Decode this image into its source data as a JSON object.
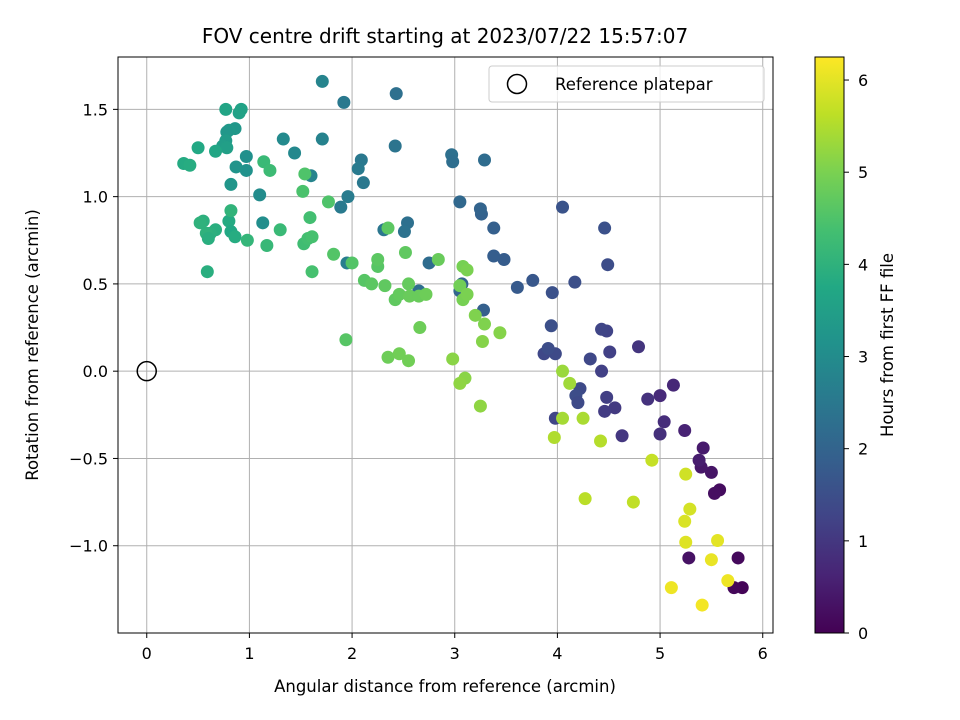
{
  "chart_data": {
    "type": "scatter",
    "title": "FOV centre drift starting at 2023/07/22 15:57:07",
    "xlabel": "Angular distance from reference (arcmin)",
    "ylabel": "Rotation from reference (arcmin)",
    "xlim": [
      -0.28,
      6.1
    ],
    "ylim": [
      -1.5,
      1.8
    ],
    "xticks": [
      0,
      1,
      2,
      3,
      4,
      5,
      6
    ],
    "xtick_labels": [
      "0",
      "1",
      "2",
      "3",
      "4",
      "5",
      "6"
    ],
    "yticks": [
      -1.0,
      -0.5,
      0.0,
      0.5,
      1.0,
      1.5
    ],
    "ytick_labels": [
      "−1.0",
      "−0.5",
      "0.0",
      "0.5",
      "1.0",
      "1.5"
    ],
    "grid": true,
    "legend": {
      "position": "top-right",
      "entries": [
        "Reference platepar"
      ]
    },
    "reference_point": {
      "x": 0,
      "y": 0,
      "label": "Reference platepar"
    },
    "colorbar": {
      "label": "Hours from first FF file",
      "min": 0,
      "max": 6.25,
      "colormap": "viridis",
      "ticks": [
        0,
        1,
        2,
        3,
        4,
        5,
        6
      ],
      "tick_labels": [
        "0",
        "1",
        "2",
        "3",
        "4",
        "5",
        "6"
      ]
    },
    "points": [
      {
        "x": 5.8,
        "y": -1.24,
        "h": 0.05
      },
      {
        "x": 5.72,
        "y": -1.24,
        "h": 0.12
      },
      {
        "x": 5.76,
        "y": -1.07,
        "h": 0.15
      },
      {
        "x": 5.28,
        "y": -1.07,
        "h": 0.3
      },
      {
        "x": 5.58,
        "y": -0.68,
        "h": 0.2
      },
      {
        "x": 5.53,
        "y": -0.7,
        "h": 0.25
      },
      {
        "x": 5.5,
        "y": -0.58,
        "h": 0.35
      },
      {
        "x": 5.4,
        "y": -0.55,
        "h": 0.4
      },
      {
        "x": 5.38,
        "y": -0.51,
        "h": 0.5
      },
      {
        "x": 5.42,
        "y": -0.44,
        "h": 0.45
      },
      {
        "x": 5.24,
        "y": -0.34,
        "h": 0.6
      },
      {
        "x": 5.13,
        "y": -0.08,
        "h": 0.7
      },
      {
        "x": 5.04,
        "y": -0.29,
        "h": 0.8
      },
      {
        "x": 5.0,
        "y": -0.14,
        "h": 0.75
      },
      {
        "x": 5.0,
        "y": -0.36,
        "h": 0.85
      },
      {
        "x": 4.88,
        "y": -0.16,
        "h": 0.9
      },
      {
        "x": 4.79,
        "y": 0.14,
        "h": 0.95
      },
      {
        "x": 4.63,
        "y": -0.37,
        "h": 1.0
      },
      {
        "x": 4.56,
        "y": -0.21,
        "h": 1.05
      },
      {
        "x": 4.46,
        "y": -0.23,
        "h": 1.1
      },
      {
        "x": 4.48,
        "y": -0.15,
        "h": 1.15
      },
      {
        "x": 4.43,
        "y": 0.0,
        "h": 1.2
      },
      {
        "x": 4.48,
        "y": 0.23,
        "h": 1.25
      },
      {
        "x": 4.43,
        "y": 0.24,
        "h": 1.3
      },
      {
        "x": 4.51,
        "y": 0.11,
        "h": 1.2
      },
      {
        "x": 4.32,
        "y": 0.07,
        "h": 1.35
      },
      {
        "x": 4.22,
        "y": -0.1,
        "h": 1.4
      },
      {
        "x": 4.18,
        "y": -0.14,
        "h": 1.45
      },
      {
        "x": 4.2,
        "y": -0.18,
        "h": 1.4
      },
      {
        "x": 4.17,
        "y": 0.51,
        "h": 1.5
      },
      {
        "x": 4.49,
        "y": 0.61,
        "h": 1.45
      },
      {
        "x": 4.46,
        "y": 0.82,
        "h": 1.55
      },
      {
        "x": 4.05,
        "y": 0.94,
        "h": 1.6
      },
      {
        "x": 3.95,
        "y": 0.45,
        "h": 1.55
      },
      {
        "x": 3.94,
        "y": 0.26,
        "h": 1.5
      },
      {
        "x": 3.98,
        "y": 0.1,
        "h": 1.4
      },
      {
        "x": 3.87,
        "y": 0.1,
        "h": 1.35
      },
      {
        "x": 3.91,
        "y": 0.13,
        "h": 1.45
      },
      {
        "x": 3.98,
        "y": -0.27,
        "h": 1.3
      },
      {
        "x": 3.76,
        "y": 0.52,
        "h": 1.7
      },
      {
        "x": 3.61,
        "y": 0.48,
        "h": 1.75
      },
      {
        "x": 3.48,
        "y": 0.64,
        "h": 1.8
      },
      {
        "x": 3.38,
        "y": 0.66,
        "h": 1.85
      },
      {
        "x": 3.38,
        "y": 0.82,
        "h": 1.9
      },
      {
        "x": 3.26,
        "y": 0.9,
        "h": 1.95
      },
      {
        "x": 3.25,
        "y": 0.93,
        "h": 2.0
      },
      {
        "x": 3.28,
        "y": 0.35,
        "h": 1.9
      },
      {
        "x": 3.05,
        "y": 0.97,
        "h": 2.1
      },
      {
        "x": 3.07,
        "y": 0.5,
        "h": 2.0
      },
      {
        "x": 3.05,
        "y": 0.46,
        "h": 2.05
      },
      {
        "x": 2.75,
        "y": 0.62,
        "h": 2.2
      },
      {
        "x": 2.65,
        "y": 0.46,
        "h": 2.25
      },
      {
        "x": 2.97,
        "y": 1.24,
        "h": 2.3
      },
      {
        "x": 2.98,
        "y": 1.2,
        "h": 2.25
      },
      {
        "x": 3.29,
        "y": 1.21,
        "h": 2.2
      },
      {
        "x": 2.54,
        "y": 0.85,
        "h": 2.3
      },
      {
        "x": 2.51,
        "y": 0.8,
        "h": 2.35
      },
      {
        "x": 2.42,
        "y": 1.29,
        "h": 2.4
      },
      {
        "x": 2.43,
        "y": 1.59,
        "h": 2.3
      },
      {
        "x": 2.31,
        "y": 0.81,
        "h": 2.45
      },
      {
        "x": 2.09,
        "y": 1.21,
        "h": 2.5
      },
      {
        "x": 2.06,
        "y": 1.16,
        "h": 2.55
      },
      {
        "x": 2.11,
        "y": 1.08,
        "h": 2.5
      },
      {
        "x": 1.96,
        "y": 1.0,
        "h": 2.6
      },
      {
        "x": 1.89,
        "y": 0.94,
        "h": 2.55
      },
      {
        "x": 1.95,
        "y": 0.62,
        "h": 2.65
      },
      {
        "x": 1.92,
        "y": 1.54,
        "h": 2.5
      },
      {
        "x": 1.71,
        "y": 1.66,
        "h": 2.8
      },
      {
        "x": 1.71,
        "y": 1.33,
        "h": 2.75
      },
      {
        "x": 1.6,
        "y": 1.12,
        "h": 2.8
      },
      {
        "x": 1.44,
        "y": 1.25,
        "h": 2.9
      },
      {
        "x": 1.33,
        "y": 1.33,
        "h": 2.95
      },
      {
        "x": 1.1,
        "y": 1.01,
        "h": 3.0
      },
      {
        "x": 1.13,
        "y": 0.85,
        "h": 3.05
      },
      {
        "x": 0.97,
        "y": 1.23,
        "h": 3.1
      },
      {
        "x": 0.97,
        "y": 1.15,
        "h": 3.15
      },
      {
        "x": 0.87,
        "y": 1.17,
        "h": 3.2
      },
      {
        "x": 0.82,
        "y": 1.07,
        "h": 3.25
      },
      {
        "x": 0.86,
        "y": 1.39,
        "h": 3.3
      },
      {
        "x": 0.8,
        "y": 1.38,
        "h": 3.35
      },
      {
        "x": 0.78,
        "y": 1.37,
        "h": 3.3
      },
      {
        "x": 0.77,
        "y": 1.32,
        "h": 3.4
      },
      {
        "x": 0.74,
        "y": 1.29,
        "h": 3.45
      },
      {
        "x": 0.78,
        "y": 1.28,
        "h": 3.5
      },
      {
        "x": 0.9,
        "y": 1.48,
        "h": 3.55
      },
      {
        "x": 0.92,
        "y": 1.5,
        "h": 3.6
      },
      {
        "x": 0.77,
        "y": 1.5,
        "h": 3.65
      },
      {
        "x": 0.67,
        "y": 1.26,
        "h": 3.7
      },
      {
        "x": 0.5,
        "y": 1.28,
        "h": 3.75
      },
      {
        "x": 0.36,
        "y": 1.19,
        "h": 3.8
      },
      {
        "x": 0.42,
        "y": 1.18,
        "h": 3.85
      },
      {
        "x": 0.8,
        "y": 0.86,
        "h": 3.8
      },
      {
        "x": 0.82,
        "y": 0.8,
        "h": 3.75
      },
      {
        "x": 0.86,
        "y": 0.77,
        "h": 3.85
      },
      {
        "x": 0.67,
        "y": 0.81,
        "h": 3.9
      },
      {
        "x": 0.62,
        "y": 0.79,
        "h": 3.95
      },
      {
        "x": 0.58,
        "y": 0.79,
        "h": 4.0
      },
      {
        "x": 0.6,
        "y": 0.76,
        "h": 3.9
      },
      {
        "x": 0.55,
        "y": 0.86,
        "h": 3.95
      },
      {
        "x": 0.52,
        "y": 0.85,
        "h": 4.0
      },
      {
        "x": 0.59,
        "y": 0.57,
        "h": 3.9
      },
      {
        "x": 0.82,
        "y": 0.92,
        "h": 4.05
      },
      {
        "x": 0.98,
        "y": 0.75,
        "h": 4.1
      },
      {
        "x": 1.17,
        "y": 0.72,
        "h": 4.15
      },
      {
        "x": 1.14,
        "y": 1.2,
        "h": 4.2
      },
      {
        "x": 1.2,
        "y": 1.15,
        "h": 4.25
      },
      {
        "x": 1.3,
        "y": 0.81,
        "h": 4.2
      },
      {
        "x": 1.53,
        "y": 0.73,
        "h": 4.3
      },
      {
        "x": 1.57,
        "y": 0.76,
        "h": 4.35
      },
      {
        "x": 1.61,
        "y": 0.77,
        "h": 4.4
      },
      {
        "x": 1.59,
        "y": 0.88,
        "h": 4.35
      },
      {
        "x": 1.52,
        "y": 1.03,
        "h": 4.45
      },
      {
        "x": 1.54,
        "y": 1.13,
        "h": 4.5
      },
      {
        "x": 1.61,
        "y": 0.57,
        "h": 4.4
      },
      {
        "x": 1.77,
        "y": 0.97,
        "h": 4.5
      },
      {
        "x": 1.82,
        "y": 0.67,
        "h": 4.55
      },
      {
        "x": 1.94,
        "y": 0.18,
        "h": 4.6
      },
      {
        "x": 2.0,
        "y": 0.62,
        "h": 4.55
      },
      {
        "x": 2.12,
        "y": 0.52,
        "h": 4.6
      },
      {
        "x": 2.19,
        "y": 0.5,
        "h": 4.65
      },
      {
        "x": 2.25,
        "y": 0.6,
        "h": 4.6
      },
      {
        "x": 2.25,
        "y": 0.64,
        "h": 4.65
      },
      {
        "x": 2.32,
        "y": 0.49,
        "h": 4.7
      },
      {
        "x": 2.35,
        "y": 0.82,
        "h": 4.65
      },
      {
        "x": 2.42,
        "y": 0.41,
        "h": 4.7
      },
      {
        "x": 2.46,
        "y": 0.44,
        "h": 4.75
      },
      {
        "x": 2.52,
        "y": 0.68,
        "h": 4.7
      },
      {
        "x": 2.55,
        "y": 0.5,
        "h": 4.75
      },
      {
        "x": 2.56,
        "y": 0.43,
        "h": 4.8
      },
      {
        "x": 2.65,
        "y": 0.43,
        "h": 4.8
      },
      {
        "x": 2.72,
        "y": 0.44,
        "h": 4.85
      },
      {
        "x": 2.84,
        "y": 0.64,
        "h": 4.8
      },
      {
        "x": 2.66,
        "y": 0.25,
        "h": 4.85
      },
      {
        "x": 2.35,
        "y": 0.08,
        "h": 4.85
      },
      {
        "x": 2.46,
        "y": 0.1,
        "h": 4.9
      },
      {
        "x": 2.55,
        "y": 0.06,
        "h": 4.9
      },
      {
        "x": 3.05,
        "y": 0.49,
        "h": 4.9
      },
      {
        "x": 3.08,
        "y": 0.41,
        "h": 4.95
      },
      {
        "x": 3.08,
        "y": 0.6,
        "h": 4.95
      },
      {
        "x": 3.12,
        "y": 0.58,
        "h": 5.0
      },
      {
        "x": 3.12,
        "y": 0.44,
        "h": 5.0
      },
      {
        "x": 3.2,
        "y": 0.32,
        "h": 5.05
      },
      {
        "x": 3.29,
        "y": 0.27,
        "h": 5.05
      },
      {
        "x": 3.44,
        "y": 0.22,
        "h": 5.1
      },
      {
        "x": 3.27,
        "y": 0.17,
        "h": 5.1
      },
      {
        "x": 2.98,
        "y": 0.07,
        "h": 5.15
      },
      {
        "x": 3.1,
        "y": -0.04,
        "h": 5.15
      },
      {
        "x": 3.05,
        "y": -0.07,
        "h": 5.2
      },
      {
        "x": 3.25,
        "y": -0.2,
        "h": 5.2
      },
      {
        "x": 4.05,
        "y": 0.0,
        "h": 5.3
      },
      {
        "x": 4.12,
        "y": -0.07,
        "h": 5.35
      },
      {
        "x": 4.05,
        "y": -0.27,
        "h": 5.4
      },
      {
        "x": 4.25,
        "y": -0.27,
        "h": 5.45
      },
      {
        "x": 3.97,
        "y": -0.38,
        "h": 5.5
      },
      {
        "x": 4.42,
        "y": -0.4,
        "h": 5.55
      },
      {
        "x": 4.27,
        "y": -0.73,
        "h": 5.6
      },
      {
        "x": 4.74,
        "y": -0.75,
        "h": 5.65
      },
      {
        "x": 4.92,
        "y": -0.51,
        "h": 5.7
      },
      {
        "x": 5.25,
        "y": -0.59,
        "h": 5.8
      },
      {
        "x": 5.29,
        "y": -0.79,
        "h": 5.85
      },
      {
        "x": 5.24,
        "y": -0.86,
        "h": 5.9
      },
      {
        "x": 5.25,
        "y": -0.98,
        "h": 5.95
      },
      {
        "x": 5.56,
        "y": -0.97,
        "h": 6.0
      },
      {
        "x": 5.5,
        "y": -1.08,
        "h": 6.05
      },
      {
        "x": 5.66,
        "y": -1.2,
        "h": 6.1
      },
      {
        "x": 5.11,
        "y": -1.24,
        "h": 6.1
      },
      {
        "x": 5.41,
        "y": -1.34,
        "h": 6.15
      }
    ]
  }
}
